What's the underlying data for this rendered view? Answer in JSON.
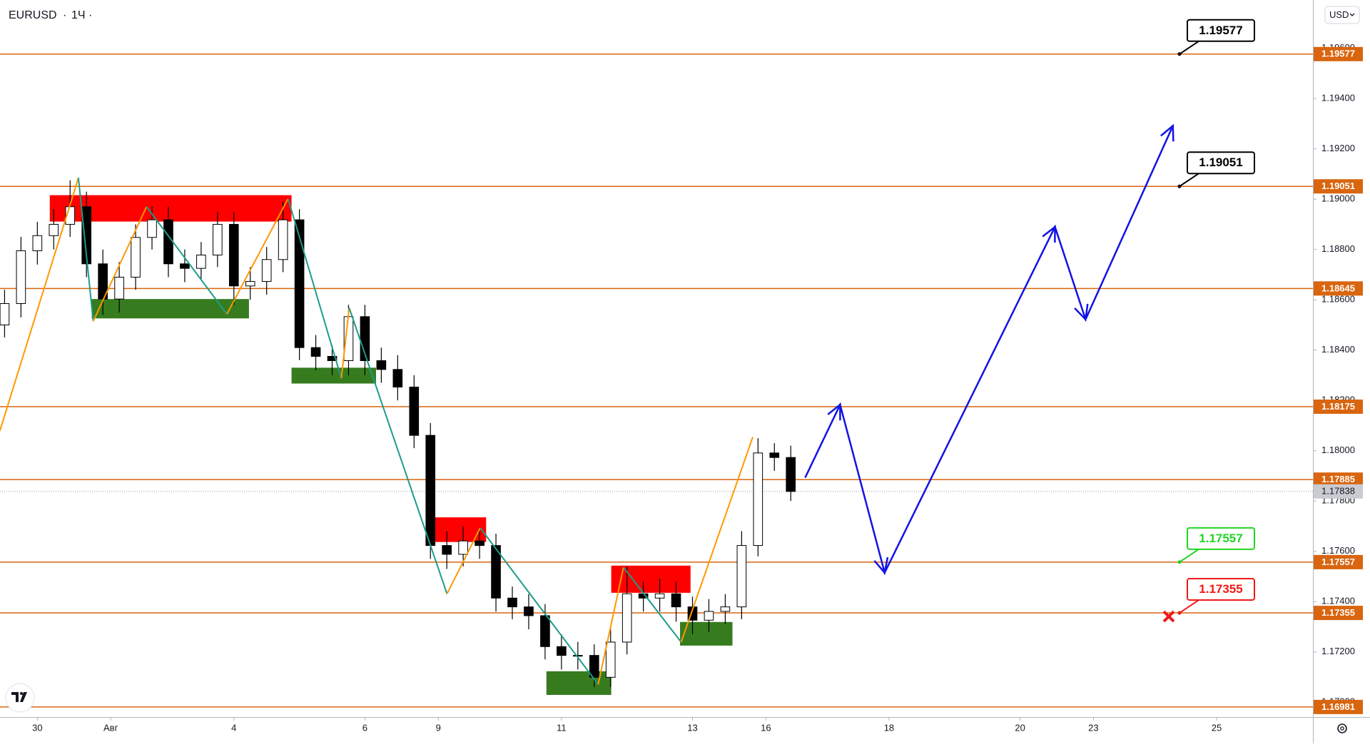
{
  "header": {
    "symbol": "EURUSD",
    "interval": "1Ч"
  },
  "currency": "USD",
  "chart_data": {
    "type": "candlestick",
    "x": [
      -0.5,
      -0.25,
      0,
      0.25,
      0.5,
      0.75,
      1,
      1.25,
      1.5,
      1.75,
      2,
      2.25,
      2.5,
      2.75,
      3,
      3.25,
      3.5,
      3.75,
      4,
      4.25,
      4.5,
      4.75,
      5,
      5.25,
      5.5,
      5.75,
      6,
      6.25,
      6.5,
      6.75,
      7,
      7.25,
      7.5,
      7.75,
      8,
      8.25,
      8.5,
      8.75,
      9,
      9.25,
      9.5,
      9.75,
      10,
      10.25,
      10.5,
      10.75,
      11,
      11.25,
      11.5
    ],
    "candles": [
      [
        1.185,
        1.1864,
        1.1845,
        1.18585
      ],
      [
        1.18585,
        1.1885,
        1.1853,
        1.18795
      ],
      [
        1.18795,
        1.1891,
        1.1874,
        1.18855
      ],
      [
        1.18855,
        1.1896,
        1.188,
        1.189
      ],
      [
        1.189,
        1.19075,
        1.1885,
        1.1897
      ],
      [
        1.1897,
        1.1903,
        1.1869,
        1.18743
      ],
      [
        1.18743,
        1.188,
        1.1854,
        1.18603
      ],
      [
        1.18603,
        1.1875,
        1.1855,
        1.1869
      ],
      [
        1.1869,
        1.189,
        1.1864,
        1.18848
      ],
      [
        1.18848,
        1.1897,
        1.188,
        1.18918
      ],
      [
        1.18918,
        1.1897,
        1.1869,
        1.18743
      ],
      [
        1.18743,
        1.188,
        1.1867,
        1.18725
      ],
      [
        1.18725,
        1.1883,
        1.1868,
        1.18778
      ],
      [
        1.18778,
        1.1895,
        1.1873,
        1.189
      ],
      [
        1.189,
        1.1895,
        1.1858,
        1.18655
      ],
      [
        1.18655,
        1.1873,
        1.186,
        1.18673
      ],
      [
        1.18673,
        1.1881,
        1.1862,
        1.1876
      ],
      [
        1.1876,
        1.1899,
        1.1871,
        1.18918
      ],
      [
        1.18918,
        1.1896,
        1.1836,
        1.1841
      ],
      [
        1.1841,
        1.1846,
        1.1832,
        1.18375
      ],
      [
        1.18375,
        1.1842,
        1.183,
        1.18358
      ],
      [
        1.18358,
        1.1858,
        1.183,
        1.18533
      ],
      [
        1.18533,
        1.1858,
        1.183,
        1.18358
      ],
      [
        1.18358,
        1.1841,
        1.1827,
        1.18323
      ],
      [
        1.18323,
        1.1838,
        1.182,
        1.18253
      ],
      [
        1.18253,
        1.183,
        1.1801,
        1.18061
      ],
      [
        1.18061,
        1.1811,
        1.1757,
        1.17623
      ],
      [
        1.17623,
        1.1768,
        1.1753,
        1.17588
      ],
      [
        1.17588,
        1.177,
        1.1754,
        1.17641
      ],
      [
        1.17641,
        1.1769,
        1.1757,
        1.17623
      ],
      [
        1.17623,
        1.1767,
        1.1736,
        1.17414
      ],
      [
        1.17414,
        1.1746,
        1.1733,
        1.17379
      ],
      [
        1.17379,
        1.1743,
        1.1729,
        1.17344
      ],
      [
        1.17344,
        1.1739,
        1.1717,
        1.17221
      ],
      [
        1.17221,
        1.1727,
        1.1713,
        1.17186
      ],
      [
        1.17186,
        1.1724,
        1.1713,
        1.17186
      ],
      [
        1.17186,
        1.1723,
        1.1706,
        1.17099
      ],
      [
        1.17099,
        1.1729,
        1.1706,
        1.17239
      ],
      [
        1.17239,
        1.1754,
        1.1719,
        1.17431
      ],
      [
        1.17431,
        1.1748,
        1.1736,
        1.17414
      ],
      [
        1.17414,
        1.1749,
        1.1736,
        1.17431
      ],
      [
        1.17431,
        1.1748,
        1.1732,
        1.17379
      ],
      [
        1.17379,
        1.1742,
        1.1727,
        1.17326
      ],
      [
        1.17326,
        1.1741,
        1.1728,
        1.17361
      ],
      [
        1.17361,
        1.1743,
        1.1731,
        1.17379
      ],
      [
        1.17379,
        1.1768,
        1.1733,
        1.17623
      ],
      [
        1.17623,
        1.1805,
        1.1758,
        1.17991
      ],
      [
        1.17991,
        1.1803,
        1.1792,
        1.17973
      ],
      [
        1.17973,
        1.1802,
        1.178,
        1.17838
      ]
    ],
    "xlim": [
      -0.57,
      19.47
    ],
    "xticks": [
      {
        "value": 0,
        "label": "30"
      },
      {
        "value": 1.12,
        "label": "Авг"
      },
      {
        "value": 3,
        "label": "4"
      },
      {
        "value": 5,
        "label": "6"
      },
      {
        "value": 6.12,
        "label": "9"
      },
      {
        "value": 8,
        "label": "11"
      },
      {
        "value": 10,
        "label": "13"
      },
      {
        "value": 11.12,
        "label": "16"
      },
      {
        "value": 13,
        "label": "18"
      },
      {
        "value": 15,
        "label": "20"
      },
      {
        "value": 16.12,
        "label": "23"
      },
      {
        "value": 18,
        "label": "25"
      }
    ],
    "ylim": [
      1.16941,
      1.19792
    ],
    "yticks": [
      {
        "value": 1.196,
        "label": "1.19600"
      },
      {
        "value": 1.194,
        "label": "1.19400"
      },
      {
        "value": 1.192,
        "label": "1.19200"
      },
      {
        "value": 1.19,
        "label": "1.19000"
      },
      {
        "value": 1.188,
        "label": "1.18800"
      },
      {
        "value": 1.186,
        "label": "1.18600"
      },
      {
        "value": 1.184,
        "label": "1.18400"
      },
      {
        "value": 1.182,
        "label": "1.18200"
      },
      {
        "value": 1.18,
        "label": "1.18000"
      },
      {
        "value": 1.178,
        "label": "1.17800"
      },
      {
        "value": 1.176,
        "label": "1.17600"
      },
      {
        "value": 1.174,
        "label": "1.17400"
      },
      {
        "value": 1.172,
        "label": "1.17200"
      },
      {
        "value": 1.17,
        "label": "1.17000"
      }
    ],
    "last_price": 1.17838,
    "levels": {
      "color": "#d9650f",
      "values": [
        1.19577,
        1.19051,
        1.18645,
        1.18175,
        1.17885,
        1.17557,
        1.17355,
        1.16981
      ]
    },
    "zones": [
      {
        "color": "#ff0000",
        "x": [
          0.19,
          3.88
        ],
        "y": [
          1.18911,
          1.19016
        ]
      },
      {
        "color": "#367c1f",
        "x": [
          0.83,
          3.23
        ],
        "y": [
          1.18526,
          1.18603
        ]
      },
      {
        "color": "#367c1f",
        "x": [
          3.88,
          5.17
        ],
        "y": [
          1.18267,
          1.1833
        ]
      },
      {
        "color": "#ff0000",
        "x": [
          6.01,
          6.85
        ],
        "y": [
          1.17637,
          1.17735
        ]
      },
      {
        "color": "#ff0000",
        "x": [
          8.76,
          9.97
        ],
        "y": [
          1.17435,
          1.17543
        ]
      },
      {
        "color": "#367c1f",
        "x": [
          7.77,
          8.76
        ],
        "y": [
          1.17029,
          1.17123
        ]
      },
      {
        "color": "#367c1f",
        "x": [
          9.81,
          10.61
        ],
        "y": [
          1.17225,
          1.17319
        ]
      }
    ],
    "zigzag": {
      "up_color": "#ff9800",
      "down_color": "#1e9b8a",
      "x": [
        -0.573,
        0.627,
        0.853,
        1.667,
        2.893,
        3.827,
        4.64,
        4.76,
        6.253,
        6.76,
        8.56,
        8.947,
        9.827,
        10.92
      ],
      "y": [
        1.18078,
        1.19085,
        1.18515,
        1.1897,
        1.18543,
        1.19002,
        1.18288,
        1.18568,
        1.17431,
        1.17693,
        1.17071,
        1.17536,
        1.17239,
        1.18054
      ]
    },
    "projection": {
      "color": "#1212e6",
      "x": [
        11.72,
        12.253,
        12.933,
        15.533,
        16.0,
        17.333
      ],
      "y": [
        1.17893,
        1.18183,
        1.17515,
        1.1889,
        1.18522,
        1.19292
      ]
    },
    "callouts": [
      {
        "value": 1.19577,
        "color": "#000000"
      },
      {
        "value": 1.19051,
        "color": "#000000"
      },
      {
        "value": 1.17557,
        "color": "#22d422"
      },
      {
        "value": 1.17355,
        "color": "#f01818"
      }
    ]
  }
}
